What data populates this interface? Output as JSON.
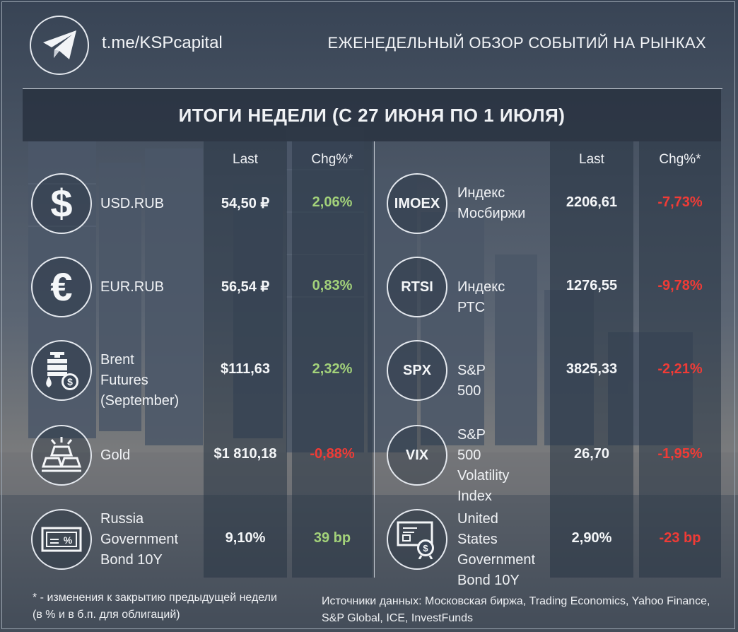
{
  "header": {
    "link": "t.me/KSPcapital",
    "tagline": "ЕЖЕНЕДЕЛЬНЫЙ ОБЗОР СОБЫТИЙ НА РЫНКАХ"
  },
  "title": "ИТОГИ НЕДЕЛИ (С 27 ИЮНЯ ПО 1 ИЮЛЯ)",
  "columns": {
    "last": "Last",
    "chg": "Chg%*"
  },
  "colors": {
    "positive": "#a3d27a",
    "negative": "#f03b36",
    "text": "#f0f2f5",
    "title_bar": "#26303e"
  },
  "left": [
    {
      "icon": "dollar-icon",
      "icon_text": "$",
      "name_lines": [
        "USD.RUB"
      ],
      "last": "54,50 ₽",
      "chg": "2,06%",
      "trend": "positive"
    },
    {
      "icon": "euro-icon",
      "icon_text": "€",
      "name_lines": [
        "EUR.RUB"
      ],
      "last": "56,54 ₽",
      "chg": "0,83%",
      "trend": "positive"
    },
    {
      "icon": "oil-barrel-icon",
      "icon_text": "",
      "name_lines": [
        "Brent Futures",
        "(September)"
      ],
      "last": "$111,63",
      "chg": "2,32%",
      "trend": "positive"
    },
    {
      "icon": "gold-bar-icon",
      "icon_text": "",
      "name_lines": [
        "Gold"
      ],
      "last": "$1 810,18",
      "chg": "-0,88%",
      "trend": "negative"
    },
    {
      "icon": "bond-certificate-icon",
      "icon_text": "",
      "name_lines": [
        "Russia",
        "Government",
        "Bond 10Y"
      ],
      "last": "9,10%",
      "chg": "39 bp",
      "trend": "positive"
    }
  ],
  "right": [
    {
      "icon": "imoex-icon",
      "icon_text": "IMOEX",
      "name_lines": [
        "Индекс",
        "Мосбиржи"
      ],
      "last": "2206,61",
      "chg": "-7,73%",
      "trend": "negative"
    },
    {
      "icon": "rtsi-icon",
      "icon_text": "RTSI",
      "name_lines": [
        "Индекс РТС"
      ],
      "last": "1276,55",
      "chg": "-9,78%",
      "trend": "negative"
    },
    {
      "icon": "spx-icon",
      "icon_text": "SPX",
      "name_lines": [
        "S&P 500"
      ],
      "last": "3825,33",
      "chg": "-2,21%",
      "trend": "negative"
    },
    {
      "icon": "vix-icon",
      "icon_text": "VIX",
      "name_lines": [
        "S&P 500",
        "Volatility",
        "Index"
      ],
      "last": "26,70",
      "chg": "-1,95%",
      "trend": "negative"
    },
    {
      "icon": "us-bond-certificate-icon",
      "icon_text": "",
      "name_lines": [
        "United States",
        "Government",
        "Bond 10Y"
      ],
      "last": "2,90%",
      "chg": "-23 bp",
      "trend": "negative"
    }
  ],
  "footnote": [
    "* - изменения к закрытию предыдущей недели",
    "(в % и в б.п. для облигаций)"
  ],
  "sources": [
    "Источники данных: Московская биржа, Trading Economics, Yahoo Finance,",
    "S&P Global, ICE, InvestFunds"
  ]
}
